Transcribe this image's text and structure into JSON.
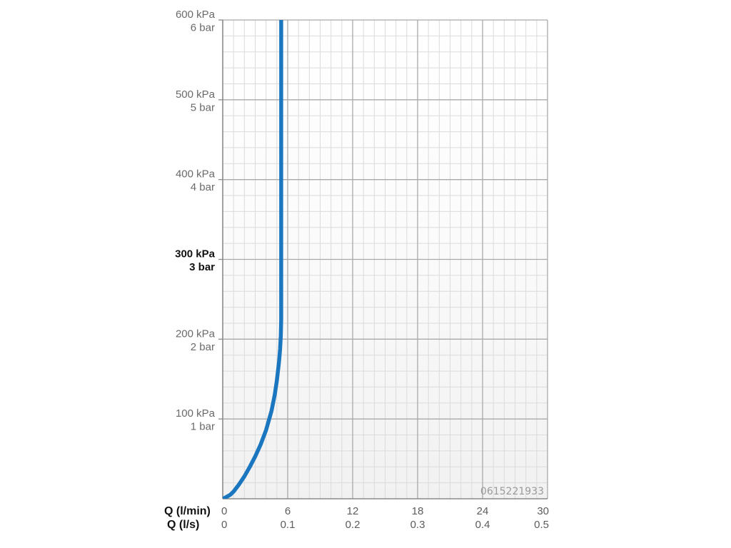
{
  "chart_data": {
    "type": "line",
    "xlabel": "Q (l/min)",
    "xlabel_secondary": "Q (l/s)",
    "xlim": [
      0,
      30
    ],
    "ylim": [
      0,
      600
    ],
    "grid": true,
    "minor_grid": true,
    "y_ticks": [
      {
        "value": 600,
        "kpa": "600 kPa",
        "bar": "6 bar",
        "highlight": false
      },
      {
        "value": 500,
        "kpa": "500 kPa",
        "bar": "5 bar",
        "highlight": false
      },
      {
        "value": 400,
        "kpa": "400 kPa",
        "bar": "4 bar",
        "highlight": false
      },
      {
        "value": 300,
        "kpa": "300 kPa",
        "bar": "3 bar",
        "highlight": true
      },
      {
        "value": 200,
        "kpa": "200 kPa",
        "bar": "2 bar",
        "highlight": false
      },
      {
        "value": 100,
        "kpa": "100 kPa",
        "bar": "1 bar",
        "highlight": false
      }
    ],
    "x_ticks": [
      {
        "value": 0,
        "lmin": "0",
        "ls": "0"
      },
      {
        "value": 6,
        "lmin": "6",
        "ls": "0.1"
      },
      {
        "value": 12,
        "lmin": "12",
        "ls": "0.2"
      },
      {
        "value": 18,
        "lmin": "18",
        "ls": "0.3"
      },
      {
        "value": 24,
        "lmin": "24",
        "ls": "0.4"
      },
      {
        "value": 30,
        "lmin": "30",
        "ls": "0.5"
      }
    ],
    "series": [
      {
        "color": "#1b76c0",
        "x": [
          0,
          0.3,
          0.7,
          1.0,
          1.5,
          2.0,
          2.5,
          3.0,
          3.5,
          4.0,
          4.5,
          4.8,
          5.0,
          5.2,
          5.3,
          5.37,
          5.4,
          5.4
        ],
        "y": [
          0,
          2,
          5,
          9,
          18,
          28,
          40,
          53,
          68,
          86,
          110,
          130,
          148,
          172,
          188,
          205,
          225,
          600
        ]
      }
    ],
    "annotations": [
      {
        "text": "0615221933",
        "placement": "bottom-right"
      }
    ]
  }
}
